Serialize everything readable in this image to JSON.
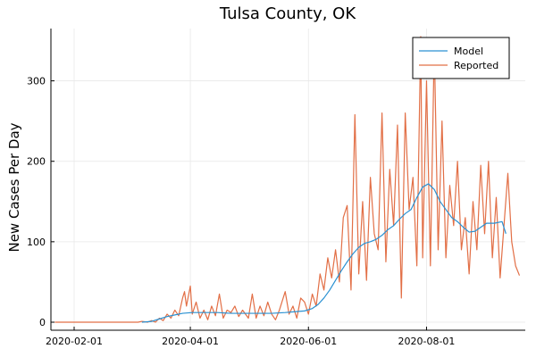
{
  "chart_data": {
    "type": "line",
    "title": "Tulsa County, OK",
    "xlabel": "",
    "ylabel": "New Cases Per Day",
    "x_ticks": [
      "2020-02-01",
      "2020-04-01",
      "2020-06-01",
      "2020-08-01"
    ],
    "y_ticks": [
      0,
      100,
      200,
      300
    ],
    "xlim": [
      "2020-01-20",
      "2020-09-21"
    ],
    "ylim": [
      -10,
      365
    ],
    "grid": true,
    "legend_position": "top-right",
    "series": [
      {
        "name": "Model",
        "color": "#2a91d2",
        "points": [
          [
            "2020-03-07",
            0
          ],
          [
            "2020-03-12",
            1
          ],
          [
            "2020-03-16",
            4
          ],
          [
            "2020-03-20",
            7
          ],
          [
            "2020-03-24",
            9
          ],
          [
            "2020-03-28",
            11
          ],
          [
            "2020-04-02",
            12
          ],
          [
            "2020-04-08",
            12
          ],
          [
            "2020-04-15",
            12
          ],
          [
            "2020-04-22",
            11
          ],
          [
            "2020-04-29",
            11
          ],
          [
            "2020-05-06",
            11
          ],
          [
            "2020-05-13",
            11
          ],
          [
            "2020-05-20",
            12
          ],
          [
            "2020-05-25",
            13
          ],
          [
            "2020-05-30",
            14
          ],
          [
            "2020-06-03",
            17
          ],
          [
            "2020-06-06",
            22
          ],
          [
            "2020-06-09",
            30
          ],
          [
            "2020-06-12",
            40
          ],
          [
            "2020-06-15",
            52
          ],
          [
            "2020-06-18",
            64
          ],
          [
            "2020-06-21",
            75
          ],
          [
            "2020-06-24",
            85
          ],
          [
            "2020-06-27",
            93
          ],
          [
            "2020-06-30",
            98
          ],
          [
            "2020-07-03",
            100
          ],
          [
            "2020-07-06",
            103
          ],
          [
            "2020-07-09",
            108
          ],
          [
            "2020-07-12",
            115
          ],
          [
            "2020-07-15",
            120
          ],
          [
            "2020-07-18",
            128
          ],
          [
            "2020-07-21",
            135
          ],
          [
            "2020-07-24",
            140
          ],
          [
            "2020-07-27",
            155
          ],
          [
            "2020-07-30",
            168
          ],
          [
            "2020-08-02",
            172
          ],
          [
            "2020-08-05",
            165
          ],
          [
            "2020-08-08",
            150
          ],
          [
            "2020-08-11",
            140
          ],
          [
            "2020-08-14",
            130
          ],
          [
            "2020-08-17",
            125
          ],
          [
            "2020-08-20",
            118
          ],
          [
            "2020-08-23",
            112
          ],
          [
            "2020-08-26",
            113
          ],
          [
            "2020-08-29",
            118
          ],
          [
            "2020-09-01",
            123
          ],
          [
            "2020-09-05",
            123
          ],
          [
            "2020-09-09",
            125
          ],
          [
            "2020-09-11",
            110
          ]
        ]
      },
      {
        "name": "Reported",
        "color": "#e26f46",
        "points": [
          [
            "2020-01-22",
            0
          ],
          [
            "2020-03-05",
            0
          ],
          [
            "2020-03-07",
            1
          ],
          [
            "2020-03-10",
            0
          ],
          [
            "2020-03-12",
            2
          ],
          [
            "2020-03-14",
            0
          ],
          [
            "2020-03-16",
            5
          ],
          [
            "2020-03-18",
            2
          ],
          [
            "2020-03-20",
            10
          ],
          [
            "2020-03-22",
            5
          ],
          [
            "2020-03-24",
            15
          ],
          [
            "2020-03-26",
            8
          ],
          [
            "2020-03-28",
            30
          ],
          [
            "2020-03-29",
            38
          ],
          [
            "2020-03-30",
            20
          ],
          [
            "2020-04-01",
            45
          ],
          [
            "2020-04-02",
            10
          ],
          [
            "2020-04-04",
            25
          ],
          [
            "2020-04-06",
            5
          ],
          [
            "2020-04-08",
            15
          ],
          [
            "2020-04-10",
            3
          ],
          [
            "2020-04-12",
            20
          ],
          [
            "2020-04-14",
            8
          ],
          [
            "2020-04-16",
            35
          ],
          [
            "2020-04-18",
            5
          ],
          [
            "2020-04-20",
            15
          ],
          [
            "2020-04-22",
            12
          ],
          [
            "2020-04-24",
            20
          ],
          [
            "2020-04-26",
            7
          ],
          [
            "2020-04-28",
            15
          ],
          [
            "2020-05-01",
            5
          ],
          [
            "2020-05-03",
            35
          ],
          [
            "2020-05-05",
            5
          ],
          [
            "2020-05-07",
            20
          ],
          [
            "2020-05-09",
            8
          ],
          [
            "2020-05-11",
            25
          ],
          [
            "2020-05-13",
            10
          ],
          [
            "2020-05-15",
            3
          ],
          [
            "2020-05-17",
            15
          ],
          [
            "2020-05-20",
            38
          ],
          [
            "2020-05-22",
            10
          ],
          [
            "2020-05-24",
            20
          ],
          [
            "2020-05-26",
            5
          ],
          [
            "2020-05-28",
            30
          ],
          [
            "2020-05-30",
            25
          ],
          [
            "2020-06-01",
            10
          ],
          [
            "2020-06-03",
            35
          ],
          [
            "2020-06-05",
            20
          ],
          [
            "2020-06-07",
            60
          ],
          [
            "2020-06-09",
            40
          ],
          [
            "2020-06-11",
            80
          ],
          [
            "2020-06-13",
            55
          ],
          [
            "2020-06-15",
            90
          ],
          [
            "2020-06-17",
            50
          ],
          [
            "2020-06-19",
            130
          ],
          [
            "2020-06-21",
            145
          ],
          [
            "2020-06-23",
            40
          ],
          [
            "2020-06-25",
            258
          ],
          [
            "2020-06-27",
            60
          ],
          [
            "2020-06-29",
            150
          ],
          [
            "2020-07-01",
            52
          ],
          [
            "2020-07-03",
            180
          ],
          [
            "2020-07-05",
            110
          ],
          [
            "2020-07-07",
            90
          ],
          [
            "2020-07-09",
            260
          ],
          [
            "2020-07-11",
            75
          ],
          [
            "2020-07-13",
            190
          ],
          [
            "2020-07-15",
            120
          ],
          [
            "2020-07-17",
            245
          ],
          [
            "2020-07-19",
            30
          ],
          [
            "2020-07-21",
            260
          ],
          [
            "2020-07-23",
            140
          ],
          [
            "2020-07-25",
            180
          ],
          [
            "2020-07-27",
            70
          ],
          [
            "2020-07-29",
            355
          ],
          [
            "2020-07-30",
            80
          ],
          [
            "2020-08-01",
            300
          ],
          [
            "2020-08-03",
            70
          ],
          [
            "2020-08-05",
            345
          ],
          [
            "2020-08-07",
            90
          ],
          [
            "2020-08-09",
            250
          ],
          [
            "2020-08-11",
            80
          ],
          [
            "2020-08-13",
            170
          ],
          [
            "2020-08-15",
            120
          ],
          [
            "2020-08-17",
            200
          ],
          [
            "2020-08-19",
            90
          ],
          [
            "2020-08-21",
            130
          ],
          [
            "2020-08-23",
            60
          ],
          [
            "2020-08-25",
            150
          ],
          [
            "2020-08-27",
            90
          ],
          [
            "2020-08-29",
            195
          ],
          [
            "2020-08-31",
            110
          ],
          [
            "2020-09-02",
            200
          ],
          [
            "2020-09-04",
            80
          ],
          [
            "2020-09-06",
            155
          ],
          [
            "2020-09-08",
            55
          ],
          [
            "2020-09-10",
            120
          ],
          [
            "2020-09-12",
            185
          ],
          [
            "2020-09-14",
            100
          ],
          [
            "2020-09-16",
            70
          ],
          [
            "2020-09-18",
            58
          ]
        ]
      }
    ]
  }
}
